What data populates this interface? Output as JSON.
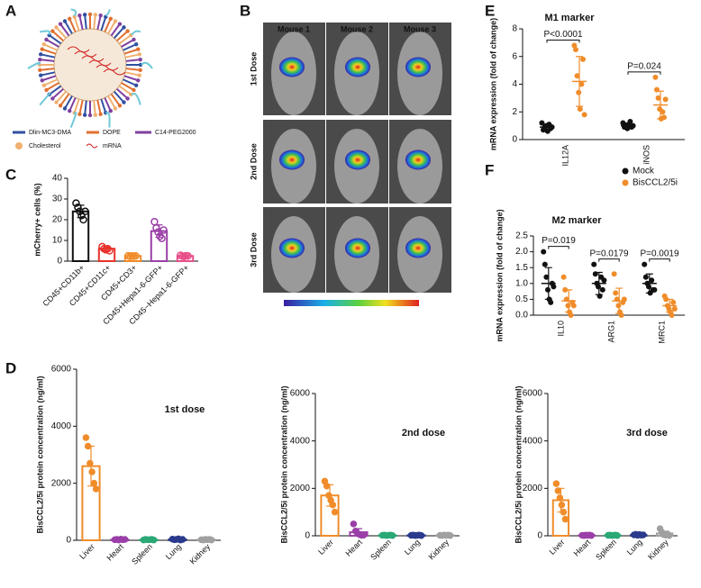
{
  "panel_labels": [
    "A",
    "B",
    "C",
    "D",
    "E",
    "F"
  ],
  "figure_a": {
    "legend": [
      "Dlin-MC3-DMA",
      "DOPE",
      "C14-PEG2000",
      "Cholesterol",
      "mRNA"
    ]
  },
  "figure_b": {
    "columns": [
      "Mouse 1",
      "Mouse 2",
      "Mouse 3"
    ],
    "rows": [
      "1st Dose",
      "2nd Dose",
      "3rd Dose"
    ]
  },
  "chart_data": [
    {
      "type": "bar",
      "ylabel": "mCherry+ cells (%)",
      "categories": [
        "CD45+CD11b+",
        "CD45+CD11c+",
        "CD45+CD3+",
        "CD45+Hepa1-6-GFP+",
        "CD45−Hepa1-6-GFP+"
      ],
      "colors": [
        "#111111",
        "#e8312a",
        "#f08c2a",
        "#9b3fa8",
        "#e8508a"
      ],
      "values": [
        24,
        6,
        2.5,
        14.5,
        2.5
      ],
      "errors": [
        3,
        1,
        0.4,
        3,
        0.5
      ],
      "points": [
        [
          28,
          26,
          24,
          22,
          20,
          24
        ],
        [
          7,
          6,
          5.5,
          6,
          5
        ],
        [
          2.6,
          2.3,
          2.5,
          2.4,
          2.5
        ],
        [
          19,
          16,
          14,
          12,
          11,
          15
        ],
        [
          2.8,
          2.4,
          2.3,
          2.6,
          2.5
        ]
      ],
      "ylim": [
        0,
        40
      ],
      "yticks": [
        0,
        10,
        20,
        30,
        40
      ]
    },
    {
      "type": "dot",
      "title": "M1 marker",
      "ylabel": "mRNA expression (fold of change)",
      "categories": [
        "IL12A",
        "iNOS"
      ],
      "series": [
        {
          "color": "#111111",
          "values": [
            0.9,
            1.0
          ],
          "errors": [
            0.2,
            0.2
          ],
          "points": [
            [
              1.2,
              0.7,
              0.9,
              1.0,
              0.6,
              1.1,
              0.8,
              0.9
            ],
            [
              1.2,
              0.9,
              1.0,
              0.8,
              1.1,
              1.3,
              0.9,
              1.0
            ]
          ]
        },
        {
          "color": "#f08c2a",
          "values": [
            4.2,
            2.5
          ],
          "errors": [
            1.8,
            1.0
          ],
          "points": [
            [
              6.8,
              6.5,
              4.6,
              3.4,
              2.2,
              4.0,
              5.8,
              1.8
            ],
            [
              4.5,
              3.6,
              3.0,
              2.2,
              1.5,
              2.0,
              1.6,
              2.9
            ]
          ]
        }
      ],
      "annotations": [
        "P<0.0001",
        "P=0.024"
      ],
      "ylim": [
        0,
        8
      ],
      "yticks": [
        0,
        2,
        4,
        6,
        8
      ]
    },
    {
      "type": "dot",
      "title": "M2 marker",
      "ylabel": "mRNA expression (fold of change)",
      "categories": [
        "IL10",
        "ARG1",
        "MRC1"
      ],
      "series": [
        {
          "name": "Mock",
          "color": "#111111",
          "values": [
            1.0,
            1.0,
            1.0
          ],
          "errors": [
            0.5,
            0.35,
            0.3
          ],
          "points": [
            [
              2.0,
              1.6,
              1.2,
              0.8,
              0.5,
              0.4,
              1.0,
              0.9
            ],
            [
              1.6,
              1.3,
              1.0,
              0.9,
              0.6,
              1.2,
              0.8,
              1.1
            ],
            [
              1.6,
              1.2,
              1.0,
              0.9,
              0.7,
              1.1,
              0.8,
              0.8
            ]
          ]
        },
        {
          "name": "BisCCL2/5i",
          "color": "#f08c2a",
          "values": [
            0.45,
            0.45,
            0.3
          ],
          "errors": [
            0.35,
            0.4,
            0.2
          ],
          "points": [
            [
              1.2,
              0.8,
              0.5,
              0.3,
              0.1,
              0.0,
              0.4,
              0.3
            ],
            [
              1.3,
              0.7,
              0.5,
              0.3,
              0.1,
              0.0,
              0.4,
              0.5
            ],
            [
              0.6,
              0.5,
              0.3,
              0.2,
              0.1,
              0.0,
              0.4,
              0.2
            ]
          ]
        }
      ],
      "legend": "top right",
      "annotations": [
        "P=0.019",
        "P=0.0179",
        "P=0.0019"
      ],
      "ylim": [
        0,
        2.5
      ],
      "yticks": [
        {
          "value": 0,
          "label": "0.0"
        },
        0.5,
        {
          "value": 1,
          "label": "1.0"
        },
        1.5,
        {
          "value": 2,
          "label": "2.0"
        },
        2.5
      ]
    },
    {
      "type": "bar",
      "title": "1st dose",
      "ylabel": "BisCCL2/5i protein concentration (ng/ml)",
      "categories": [
        "Liver",
        "Heart",
        "Spleen",
        "Lung",
        "Kidney"
      ],
      "colors": [
        "#f08c2a",
        "#9b3fa8",
        "#2aa876",
        "#2b3a8c",
        "#a0a0a0"
      ],
      "values": [
        2600,
        20,
        20,
        30,
        20
      ],
      "errors": [
        700,
        10,
        10,
        20,
        10
      ],
      "points": [
        [
          3600,
          3300,
          2700,
          2400,
          2000,
          1800
        ],
        [
          20,
          30,
          10,
          40,
          20,
          30
        ],
        [
          10,
          30,
          20,
          20,
          30,
          10
        ],
        [
          40,
          20,
          30,
          50,
          10,
          30
        ],
        [
          20,
          10,
          30,
          20,
          30,
          10
        ]
      ],
      "ylim": [
        0,
        6000
      ],
      "yticks": [
        0,
        2000,
        4000,
        6000
      ]
    },
    {
      "type": "bar",
      "title": "2nd dose",
      "ylabel": "BisCCL2/5i protein concentration (ng/ml)",
      "categories": [
        "Liver",
        "Heart",
        "Spleen",
        "Lung",
        "Kidney"
      ],
      "colors": [
        "#f08c2a",
        "#9b3fa8",
        "#2aa876",
        "#2b3a8c",
        "#a0a0a0"
      ],
      "values": [
        1700,
        150,
        20,
        20,
        20
      ],
      "errors": [
        450,
        150,
        10,
        10,
        10
      ],
      "points": [
        [
          2300,
          2100,
          1700,
          1500,
          1300,
          1000
        ],
        [
          500,
          200,
          100,
          50,
          20,
          30
        ],
        [
          20,
          30,
          10,
          20,
          30,
          10
        ],
        [
          20,
          30,
          10,
          20,
          30,
          10
        ],
        [
          20,
          10,
          30,
          20,
          30,
          10
        ]
      ],
      "ylim": [
        0,
        6000
      ],
      "yticks": [
        0,
        2000,
        4000,
        6000
      ]
    },
    {
      "type": "bar",
      "title": "3rd dose",
      "ylabel": "BisCCL2/5i protein concentration (ng/ml)",
      "categories": [
        "Liver",
        "Heart",
        "Spleen",
        "Lung",
        "Kidney"
      ],
      "colors": [
        "#f08c2a",
        "#9b3fa8",
        "#2aa876",
        "#2b3a8c",
        "#a0a0a0"
      ],
      "values": [
        1500,
        20,
        20,
        40,
        100
      ],
      "errors": [
        500,
        10,
        10,
        20,
        80
      ],
      "points": [
        [
          2200,
          1900,
          1600,
          1300,
          1000,
          700
        ],
        [
          20,
          10,
          30,
          20,
          30,
          10
        ],
        [
          20,
          30,
          10,
          20,
          30,
          10
        ],
        [
          40,
          60,
          20,
          50,
          30,
          40
        ],
        [
          300,
          150,
          50,
          30,
          80,
          10
        ]
      ],
      "ylim": [
        0,
        6000
      ],
      "yticks": [
        0,
        2000,
        4000,
        6000
      ]
    }
  ]
}
